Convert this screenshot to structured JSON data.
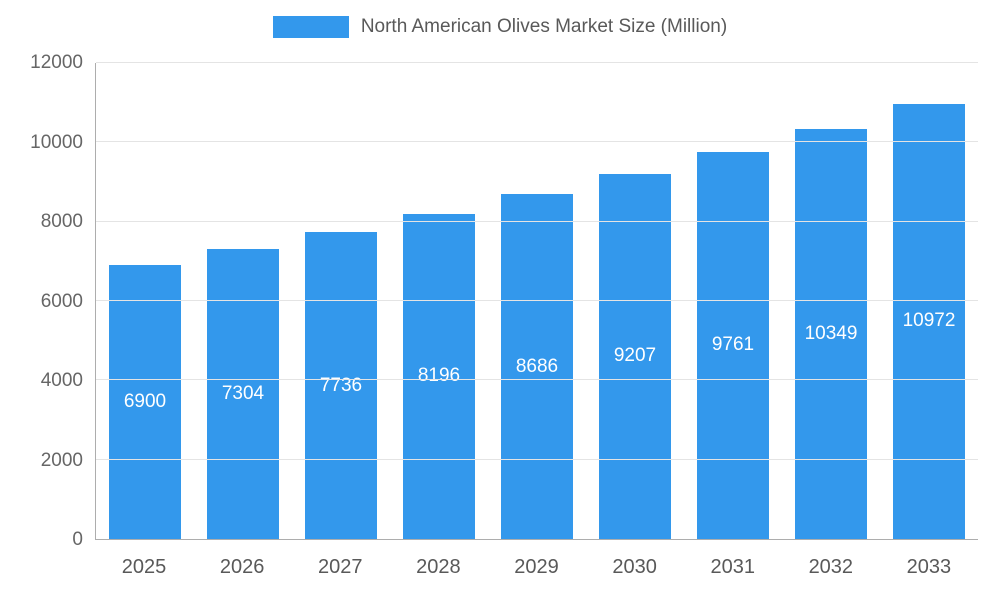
{
  "chart_data": {
    "type": "bar",
    "title": "North American Olives Market Size (Million)",
    "categories": [
      "2025",
      "2026",
      "2027",
      "2028",
      "2029",
      "2030",
      "2031",
      "2032",
      "2033"
    ],
    "values": [
      6900,
      7304,
      7736,
      8196,
      8686,
      9207,
      9761,
      10349,
      10972
    ],
    "xlabel": "",
    "ylabel": "",
    "ylim": [
      0,
      12000
    ],
    "yticks": [
      0,
      2000,
      4000,
      6000,
      8000,
      10000,
      12000
    ],
    "grid": true,
    "legend_position": "top",
    "bar_color": "#3398EC",
    "value_label_color": "#ffffff",
    "axis_text_color": "#666666"
  }
}
